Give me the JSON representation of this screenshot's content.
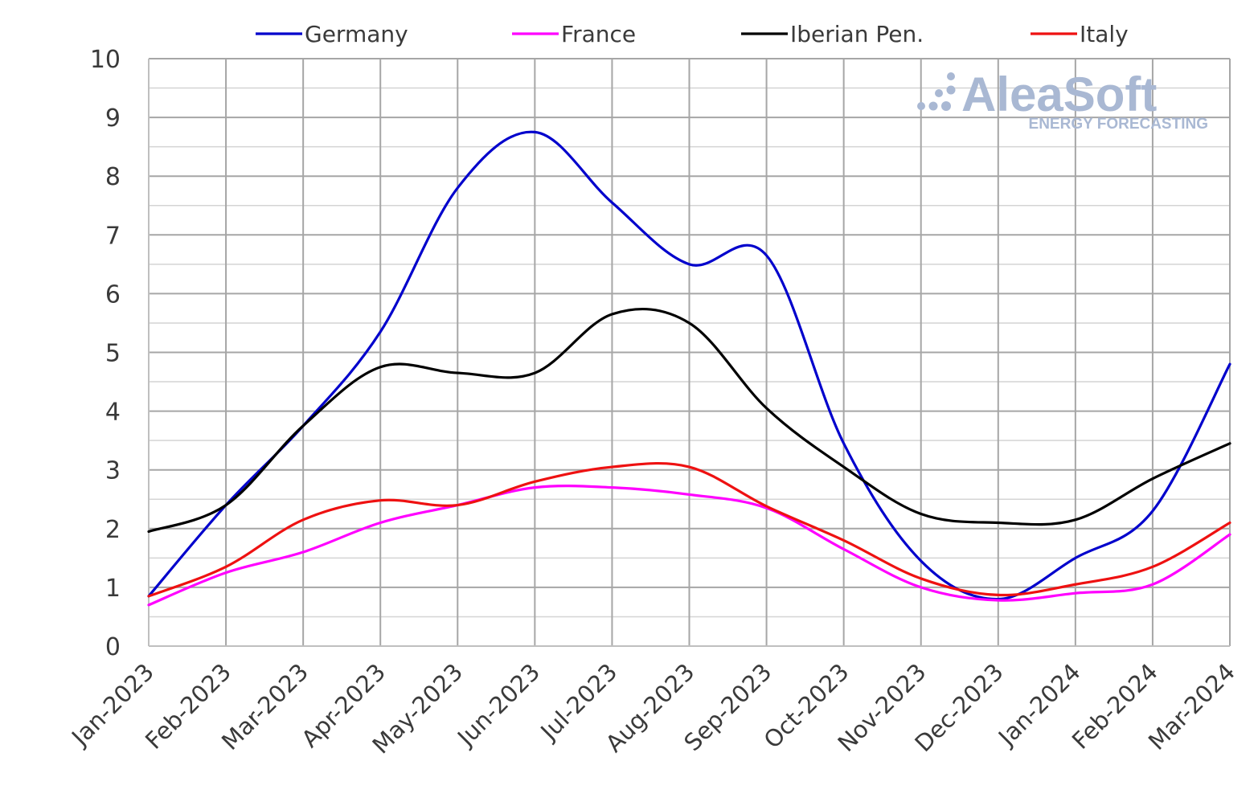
{
  "watermark": {
    "brand": "AleaSoft",
    "tagline": "ENERGY FORECASTING"
  },
  "chart_data": {
    "type": "line",
    "title": "",
    "xlabel": "",
    "ylabel": "",
    "ylim": [
      0,
      10
    ],
    "yticks": [
      "0",
      "1",
      "2",
      "3",
      "4",
      "5",
      "6",
      "7",
      "8",
      "9",
      "10"
    ],
    "grid": true,
    "legend_position": "top",
    "categories": [
      "Jan-2023",
      "Feb-2023",
      "Mar-2023",
      "Apr-2023",
      "May-2023",
      "Jun-2023",
      "Jul-2023",
      "Aug-2023",
      "Sep-2023",
      "Oct-2023",
      "Nov-2023",
      "Dec-2023",
      "Jan-2024",
      "Feb-2024",
      "Mar-2024"
    ],
    "series": [
      {
        "name": "Germany",
        "color": "#0000cc",
        "values": [
          0.85,
          2.4,
          3.75,
          5.35,
          7.8,
          8.75,
          7.55,
          6.5,
          6.65,
          3.45,
          1.45,
          0.8,
          1.5,
          2.3,
          4.8
        ]
      },
      {
        "name": "France",
        "color": "#ff00ff",
        "values": [
          0.7,
          1.25,
          1.6,
          2.1,
          2.4,
          2.7,
          2.7,
          2.58,
          2.35,
          1.65,
          1.0,
          0.78,
          0.9,
          1.05,
          1.9
        ]
      },
      {
        "name": "Iberian Pen.",
        "color": "#000000",
        "values": [
          1.95,
          2.4,
          3.75,
          4.75,
          4.65,
          4.65,
          5.65,
          5.5,
          4.05,
          3.05,
          2.25,
          2.1,
          2.15,
          2.85,
          3.45
        ]
      },
      {
        "name": "Italy",
        "color": "#ee1111",
        "values": [
          0.85,
          1.35,
          2.15,
          2.48,
          2.4,
          2.8,
          3.05,
          3.05,
          2.38,
          1.8,
          1.15,
          0.87,
          1.05,
          1.35,
          2.1
        ]
      }
    ]
  }
}
